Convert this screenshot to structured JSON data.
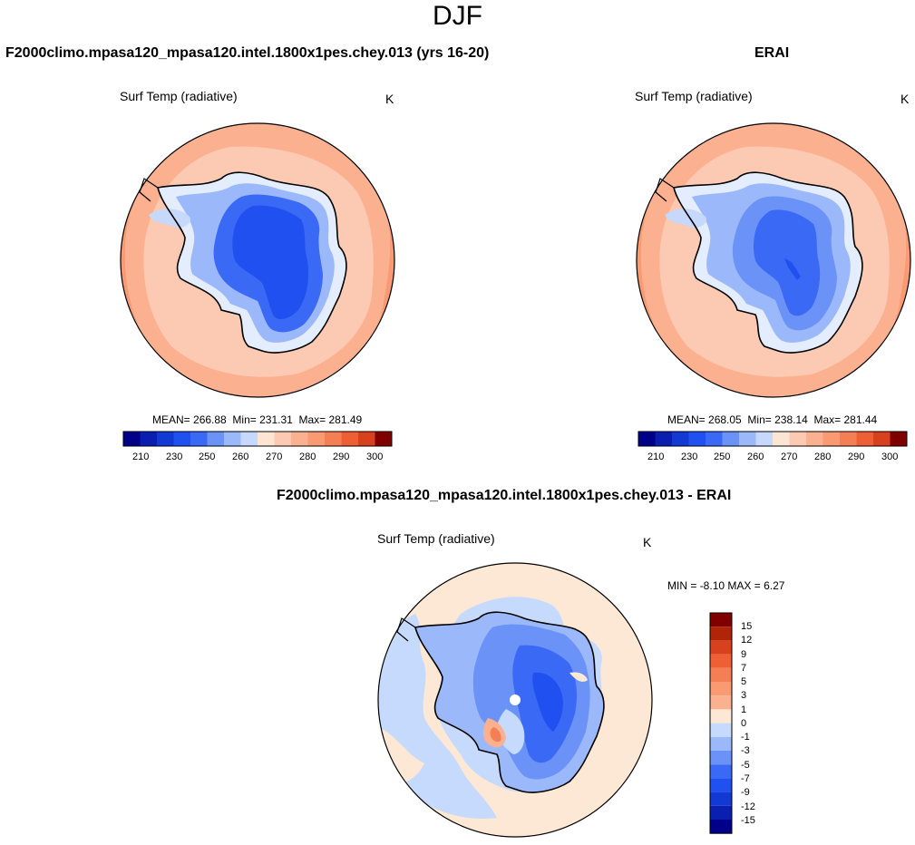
{
  "figure_title": "DJF",
  "colors": {
    "c210": "#00008a",
    "c215": "#0a1fb0",
    "c220": "#1239d4",
    "c225": "#2050f0",
    "c230": "#3a6af5",
    "c240": "#6a92f7",
    "c250": "#9bb9fa",
    "c258": "#c6d8fc",
    "c262": "#e4edfe",
    "c268": "#fde5d4",
    "c272": "#fccab2",
    "c276": "#fbb090",
    "c280": "#f99a72",
    "c285": "#f57f55",
    "c290": "#ef5f36",
    "c295": "#d8411d",
    "c300": "#b02408",
    "c305": "#800000",
    "d15n": "#00008a",
    "d12n": "#0a1fb0",
    "d9n": "#1239d4",
    "d7n": "#2050f0",
    "d5n": "#3a6af5",
    "d3n": "#6a92f7",
    "d1n": "#9bb9fa",
    "d0": "#c6dafd",
    "d0p": "#fde8d6",
    "d1": "#fccab2",
    "d3": "#fbb090",
    "d5": "#f99a72",
    "d7": "#f57f55",
    "d9": "#ef5f36",
    "d12": "#d8411d",
    "d15": "#b02408",
    "dmax": "#800000"
  },
  "panels": {
    "model": {
      "title": "F2000climo.mpasa120_mpasa120.intel.1800x1pes.chey.013 (yrs 16-20)",
      "variable": "Surf Temp (radiative)",
      "units": "K",
      "mean_label": "MEAN=",
      "mean": "266.88",
      "min_label": "Min=",
      "min": "231.31",
      "max_label": "Max=",
      "max": "281.49"
    },
    "obs": {
      "title": "ERAI",
      "variable": "Surf Temp (radiative)",
      "units": "K",
      "mean_label": "MEAN=",
      "mean": "268.05",
      "min_label": "Min=",
      "min": "238.14",
      "max_label": "Max=",
      "max": "281.44"
    },
    "diff": {
      "title": "F2000climo.mpasa120_mpasa120.intel.1800x1pes.chey.013 - ERAI",
      "variable": "Surf Temp (radiative)",
      "units": "K",
      "min_label": "MIN =",
      "min": "-8.10",
      "max_label": "MAX =",
      "max": "6.27"
    }
  },
  "colorbar_main": {
    "tick_labels": [
      "210",
      "230",
      "250",
      "260",
      "270",
      "280",
      "290",
      "300"
    ]
  },
  "colorbar_diff": {
    "tick_labels": [
      "15",
      "12",
      "9",
      "7",
      "5",
      "3",
      "1",
      "0",
      "-1",
      "-3",
      "-5",
      "-7",
      "-9",
      "-12",
      "-15"
    ]
  }
}
